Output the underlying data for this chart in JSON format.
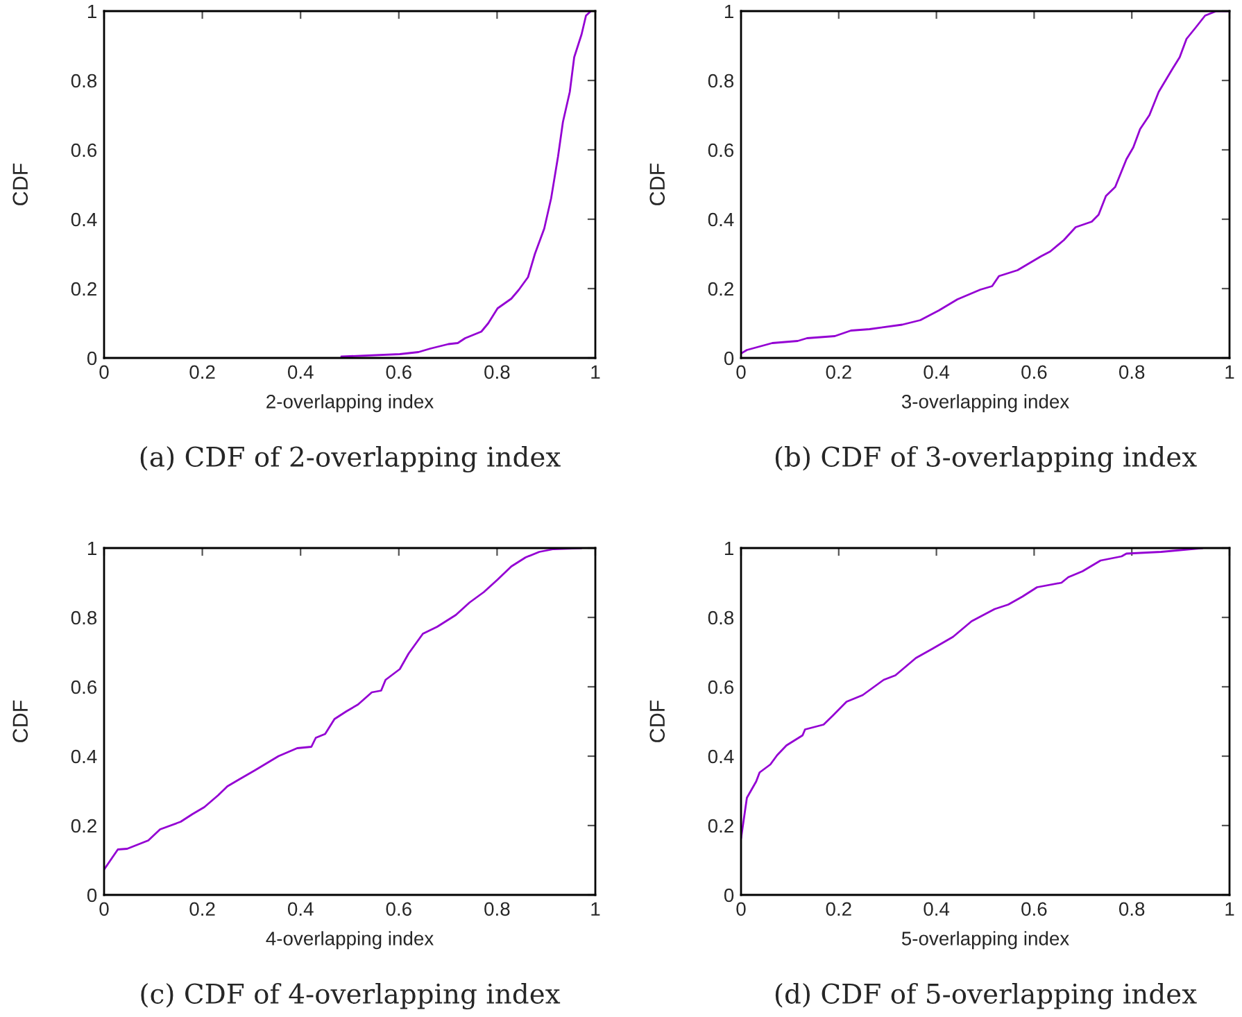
{
  "chart_data": [
    {
      "type": "line",
      "title": "(a) CDF of 2-overlapping index",
      "xlabel": "2-overlapping index",
      "ylabel": "CDF",
      "xlim": [
        0,
        1
      ],
      "ylim": [
        0,
        1
      ],
      "xticks": [
        0,
        0.2,
        0.4,
        0.6,
        0.8,
        1
      ],
      "yticks": [
        0,
        0.2,
        0.4,
        0.6,
        0.8,
        1
      ],
      "grid": false,
      "series": [
        {
          "color": "#9400d3",
          "x": [
            0.483,
            0.602,
            0.64,
            0.664,
            0.701,
            0.72,
            0.735,
            0.768,
            0.782,
            0.801,
            0.829,
            0.844,
            0.863,
            0.877,
            0.896,
            0.91,
            0.924,
            0.934,
            0.948,
            0.957,
            0.972,
            0.981,
            0.991
          ],
          "values": [
            0.004,
            0.011,
            0.017,
            0.027,
            0.04,
            0.043,
            0.057,
            0.076,
            0.1,
            0.143,
            0.171,
            0.196,
            0.233,
            0.3,
            0.373,
            0.46,
            0.58,
            0.68,
            0.767,
            0.867,
            0.933,
            0.987,
            1.0
          ]
        }
      ]
    },
    {
      "type": "line",
      "title": "(b) CDF of 3-overlapping index",
      "xlabel": "3-overlapping index",
      "ylabel": "CDF",
      "xlim": [
        0,
        1
      ],
      "ylim": [
        0,
        1
      ],
      "xticks": [
        0,
        0.2,
        0.4,
        0.6,
        0.8,
        1
      ],
      "yticks": [
        0,
        0.2,
        0.4,
        0.6,
        0.8,
        1
      ],
      "grid": false,
      "series": [
        {
          "color": "#9400d3",
          "x": [
            0,
            0.012,
            0.064,
            0.116,
            0.135,
            0.192,
            0.225,
            0.263,
            0.33,
            0.367,
            0.405,
            0.443,
            0.49,
            0.514,
            0.528,
            0.566,
            0.614,
            0.633,
            0.661,
            0.685,
            0.718,
            0.732,
            0.747,
            0.766,
            0.789,
            0.803,
            0.817,
            0.836,
            0.855,
            0.883,
            0.898,
            0.912,
            0.931,
            0.95,
            0.973,
            1.0
          ],
          "values": [
            0.013,
            0.023,
            0.043,
            0.049,
            0.057,
            0.063,
            0.079,
            0.083,
            0.096,
            0.109,
            0.137,
            0.169,
            0.197,
            0.207,
            0.236,
            0.253,
            0.293,
            0.307,
            0.34,
            0.377,
            0.393,
            0.413,
            0.467,
            0.493,
            0.573,
            0.607,
            0.66,
            0.7,
            0.767,
            0.833,
            0.867,
            0.92,
            0.953,
            0.987,
            1.0,
            1.0
          ]
        }
      ]
    },
    {
      "type": "line",
      "title": "(c) CDF of 4-overlapping index",
      "xlabel": "4-overlapping index",
      "ylabel": "CDF",
      "xlim": [
        0,
        1
      ],
      "ylim": [
        0,
        1
      ],
      "xticks": [
        0,
        0.2,
        0.4,
        0.6,
        0.8,
        1
      ],
      "yticks": [
        0,
        0.2,
        0.4,
        0.6,
        0.8,
        1
      ],
      "grid": false,
      "series": [
        {
          "color": "#9400d3",
          "x": [
            0,
            0.028,
            0.047,
            0.09,
            0.114,
            0.156,
            0.18,
            0.204,
            0.232,
            0.251,
            0.275,
            0.308,
            0.355,
            0.393,
            0.422,
            0.431,
            0.45,
            0.469,
            0.493,
            0.517,
            0.545,
            0.564,
            0.573,
            0.602,
            0.62,
            0.649,
            0.678,
            0.716,
            0.744,
            0.773,
            0.801,
            0.829,
            0.858,
            0.886,
            0.915,
            0.972
          ],
          "values": [
            0.073,
            0.131,
            0.133,
            0.157,
            0.189,
            0.211,
            0.233,
            0.253,
            0.287,
            0.313,
            0.333,
            0.36,
            0.4,
            0.423,
            0.427,
            0.453,
            0.464,
            0.507,
            0.529,
            0.549,
            0.584,
            0.589,
            0.62,
            0.651,
            0.696,
            0.753,
            0.773,
            0.807,
            0.843,
            0.873,
            0.909,
            0.947,
            0.973,
            0.989,
            0.997,
            1.0
          ]
        }
      ]
    },
    {
      "type": "line",
      "title": "(d) CDF of 5-overlapping index",
      "xlabel": "5-overlapping index",
      "ylabel": "CDF",
      "xlim": [
        0,
        1
      ],
      "ylim": [
        0,
        1
      ],
      "xticks": [
        0,
        0.2,
        0.4,
        0.6,
        0.8,
        1
      ],
      "yticks": [
        0,
        0.2,
        0.4,
        0.6,
        0.8,
        1
      ],
      "grid": false,
      "series": [
        {
          "color": "#9400d3",
          "x": [
            0,
            0.012,
            0.031,
            0.038,
            0.06,
            0.074,
            0.093,
            0.126,
            0.131,
            0.169,
            0.188,
            0.216,
            0.249,
            0.292,
            0.316,
            0.358,
            0.391,
            0.434,
            0.472,
            0.519,
            0.547,
            0.576,
            0.606,
            0.656,
            0.67,
            0.699,
            0.736,
            0.779,
            0.789,
            0.86,
            0.945
          ],
          "values": [
            0.163,
            0.28,
            0.327,
            0.353,
            0.376,
            0.403,
            0.431,
            0.46,
            0.477,
            0.491,
            0.517,
            0.557,
            0.576,
            0.62,
            0.633,
            0.683,
            0.709,
            0.744,
            0.789,
            0.824,
            0.837,
            0.86,
            0.887,
            0.9,
            0.916,
            0.933,
            0.964,
            0.976,
            0.984,
            0.989,
            1.0
          ]
        }
      ]
    }
  ]
}
